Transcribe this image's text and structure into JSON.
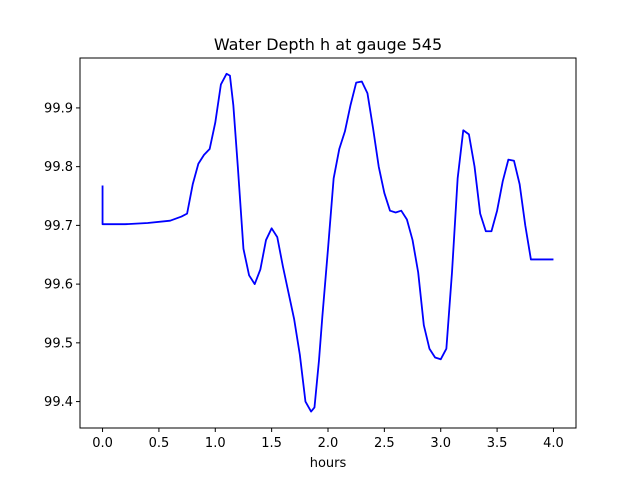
{
  "chart_data": {
    "type": "line",
    "title": "Water Depth h at gauge 545",
    "xlabel": "hours",
    "ylabel": "",
    "xlim": [
      -0.2,
      4.2
    ],
    "ylim": [
      99.355,
      99.985
    ],
    "xticks": [
      0.0,
      0.5,
      1.0,
      1.5,
      2.0,
      2.5,
      3.0,
      3.5,
      4.0
    ],
    "xtick_labels": [
      "0.0",
      "0.5",
      "1.0",
      "1.5",
      "2.0",
      "2.5",
      "3.0",
      "3.5",
      "4.0"
    ],
    "yticks": [
      99.4,
      99.5,
      99.6,
      99.7,
      99.8,
      99.9
    ],
    "ytick_labels": [
      "99.4",
      "99.5",
      "99.6",
      "99.7",
      "99.8",
      "99.9"
    ],
    "grid": false,
    "series": [
      {
        "color": "#0000ff",
        "x": [
          0.0,
          0.0,
          0.2,
          0.4,
          0.6,
          0.7,
          0.75,
          0.8,
          0.85,
          0.9,
          0.95,
          1.0,
          1.05,
          1.1,
          1.13,
          1.16,
          1.2,
          1.25,
          1.3,
          1.35,
          1.4,
          1.45,
          1.5,
          1.55,
          1.6,
          1.65,
          1.7,
          1.75,
          1.8,
          1.85,
          1.88,
          1.92,
          1.95,
          2.0,
          2.05,
          2.1,
          2.15,
          2.2,
          2.25,
          2.3,
          2.35,
          2.4,
          2.45,
          2.5,
          2.55,
          2.6,
          2.65,
          2.7,
          2.75,
          2.8,
          2.85,
          2.9,
          2.95,
          3.0,
          3.05,
          3.1,
          3.15,
          3.2,
          3.25,
          3.3,
          3.35,
          3.4,
          3.45,
          3.5,
          3.55,
          3.6,
          3.65,
          3.7,
          3.75,
          3.8,
          3.85,
          3.9,
          3.95,
          4.0
        ],
        "y": [
          99.768,
          99.702,
          99.702,
          99.704,
          99.708,
          99.715,
          99.72,
          99.77,
          99.805,
          99.82,
          99.83,
          99.875,
          99.94,
          99.958,
          99.955,
          99.905,
          99.8,
          99.66,
          99.615,
          99.6,
          99.625,
          99.675,
          99.695,
          99.68,
          99.63,
          99.585,
          99.54,
          99.48,
          99.4,
          99.383,
          99.39,
          99.47,
          99.545,
          99.66,
          99.78,
          99.83,
          99.86,
          99.905,
          99.943,
          99.945,
          99.925,
          99.865,
          99.8,
          99.755,
          99.725,
          99.722,
          99.725,
          99.71,
          99.675,
          99.62,
          99.53,
          99.49,
          99.475,
          99.472,
          99.49,
          99.62,
          99.78,
          99.862,
          99.855,
          99.8,
          99.72,
          99.69,
          99.69,
          99.725,
          99.775,
          99.812,
          99.81,
          99.77,
          99.7,
          99.642,
          99.642,
          99.642,
          99.642,
          99.642
        ]
      }
    ]
  }
}
